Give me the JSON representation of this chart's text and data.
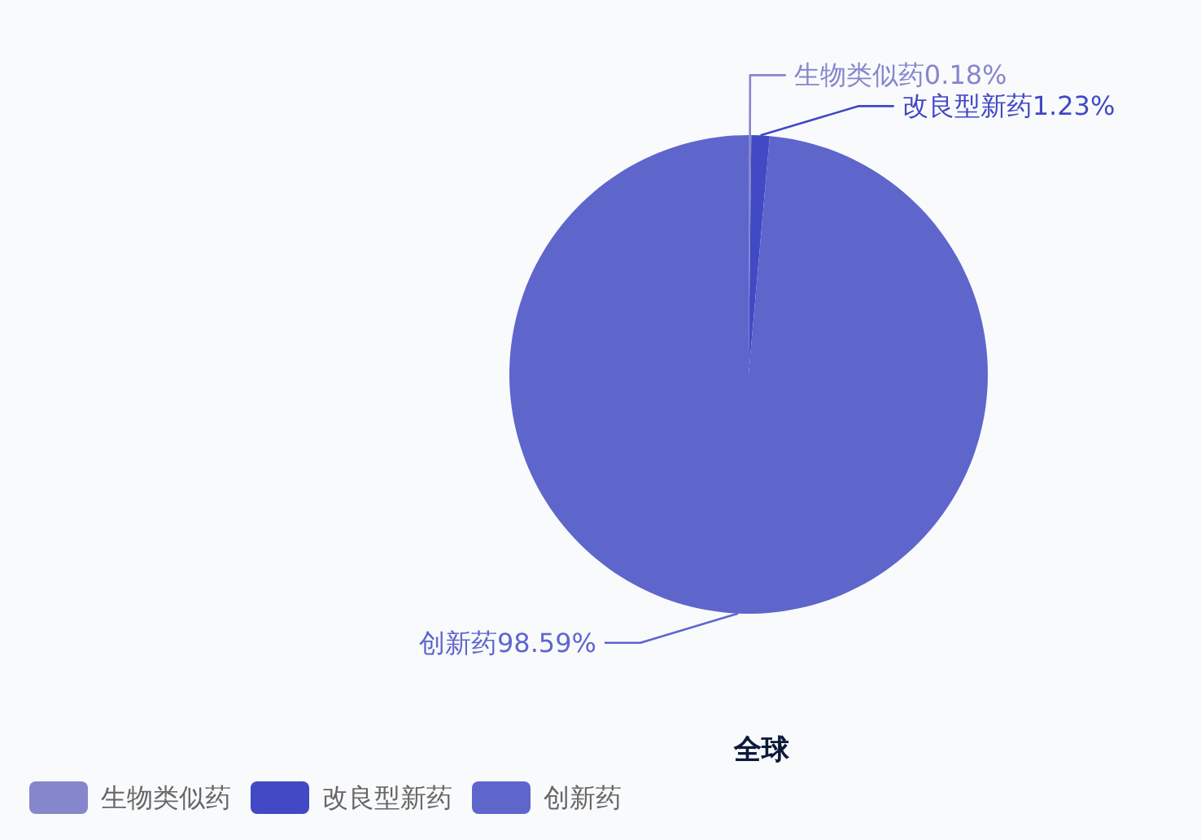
{
  "chart_data": {
    "type": "pie",
    "title": "全球",
    "categories": [
      "生物类似药",
      "改良型新药",
      "创新药"
    ],
    "values": [
      0.18,
      1.23,
      98.59
    ],
    "colors": [
      "#8686cc",
      "#4149c4",
      "#5e66cc"
    ],
    "value_labels": [
      "生物类似药0.18%",
      "改良型新药1.23%",
      "创新药98.59%"
    ],
    "legend": "bottom left"
  }
}
